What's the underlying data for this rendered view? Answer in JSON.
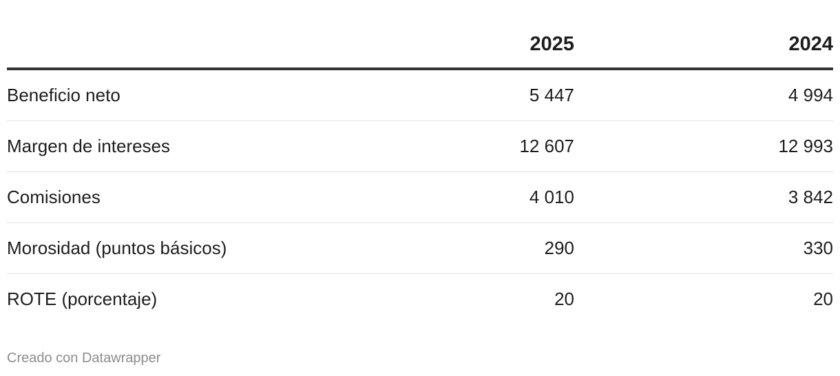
{
  "table": {
    "columns": [
      "2025",
      "2024"
    ],
    "rows": [
      [
        "Beneficio neto",
        "5 447",
        "4 994"
      ],
      [
        "Margen de intereses",
        "12 607",
        "12 993"
      ],
      [
        "Comisiones",
        "4 010",
        "3 842"
      ],
      [
        "Morosidad (puntos básicos)",
        "290",
        "330"
      ],
      [
        "ROTE (porcentaje)",
        "20",
        "20"
      ]
    ]
  },
  "footer": "Creado con Datawrapper"
}
